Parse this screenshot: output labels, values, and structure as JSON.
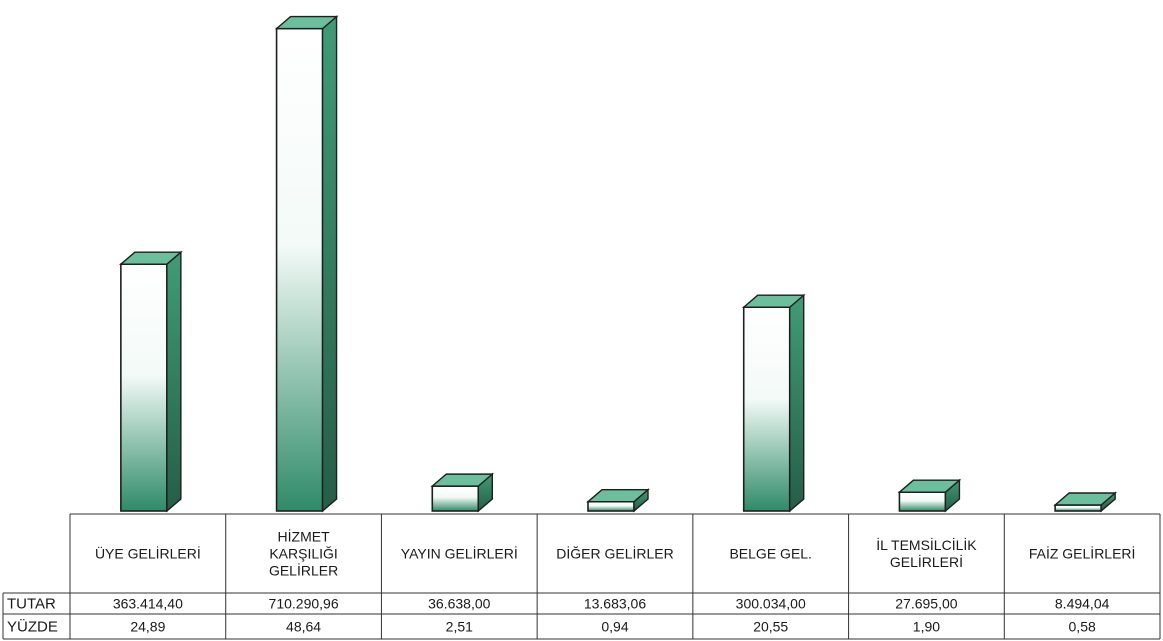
{
  "chart_data": {
    "type": "bar",
    "categories": [
      [
        "ÜYE GELİRLERİ"
      ],
      [
        "HİZMET",
        "KARŞILIĞI",
        "GELİRLER"
      ],
      [
        "YAYIN GELİRLERİ"
      ],
      [
        "DİĞER GELİRLER"
      ],
      [
        "BELGE GEL."
      ],
      [
        "İL TEMSİLCİLİK",
        "GELİRLERİ"
      ],
      [
        "FAİZ GELİRLERİ"
      ]
    ],
    "values": [
      363414.4,
      710290.96,
      36638.0,
      13683.06,
      300034.0,
      27695.0,
      8494.04
    ],
    "table": {
      "rows": [
        {
          "label": "TUTAR",
          "cells": [
            "363.414,40",
            "710.290,96",
            "36.638,00",
            "13.683,06",
            "300.034,00",
            "27.695,00",
            "8.494,04"
          ]
        },
        {
          "label": "YÜZDE",
          "cells": [
            "24,89",
            "48,64",
            "2,51",
            "0,94",
            "20,55",
            "1,90",
            "0,58"
          ]
        }
      ]
    },
    "ylim": [
      0,
      720000
    ],
    "grid": false,
    "legend": "none",
    "colors": {
      "bar_front_top": "#ffffff",
      "bar_front_bottom": "#2e8b68",
      "bar_side": "#2f7d5e",
      "bar_top": "#6cbf9c",
      "outline": "#1f1f1f"
    }
  }
}
